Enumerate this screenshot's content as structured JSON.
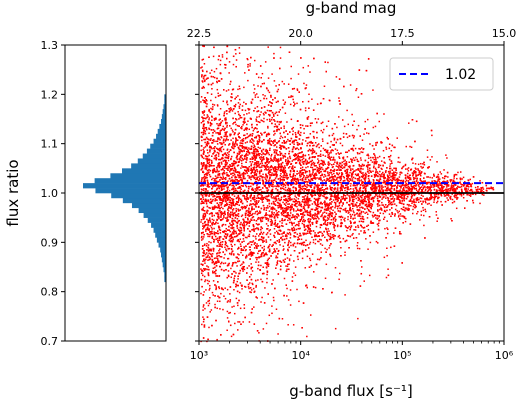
{
  "chart_data": [
    {
      "type": "bar",
      "orientation": "horizontal",
      "panel": "histogram",
      "ylabel": "flux ratio",
      "ylim": [
        0.7,
        1.3
      ],
      "ytick_labels": [
        "0.7",
        "0.8",
        "0.9",
        "1.0",
        "1.1",
        "1.2",
        "1.3"
      ],
      "bar_color": "#1f77b4",
      "bins": [
        {
          "y": 0.825,
          "value": 0.02
        },
        {
          "y": 0.835,
          "value": 0.02
        },
        {
          "y": 0.845,
          "value": 0.03
        },
        {
          "y": 0.855,
          "value": 0.04
        },
        {
          "y": 0.865,
          "value": 0.05
        },
        {
          "y": 0.875,
          "value": 0.06
        },
        {
          "y": 0.885,
          "value": 0.07
        },
        {
          "y": 0.895,
          "value": 0.09
        },
        {
          "y": 0.905,
          "value": 0.11
        },
        {
          "y": 0.915,
          "value": 0.13
        },
        {
          "y": 0.925,
          "value": 0.15
        },
        {
          "y": 0.935,
          "value": 0.18
        },
        {
          "y": 0.945,
          "value": 0.22
        },
        {
          "y": 0.955,
          "value": 0.27
        },
        {
          "y": 0.965,
          "value": 0.33
        },
        {
          "y": 0.975,
          "value": 0.41
        },
        {
          "y": 0.985,
          "value": 0.52
        },
        {
          "y": 0.995,
          "value": 0.66
        },
        {
          "y": 1.005,
          "value": 0.85
        },
        {
          "y": 1.015,
          "value": 1.0
        },
        {
          "y": 1.025,
          "value": 0.86
        },
        {
          "y": 1.035,
          "value": 0.67
        },
        {
          "y": 1.045,
          "value": 0.53
        },
        {
          "y": 1.055,
          "value": 0.42
        },
        {
          "y": 1.065,
          "value": 0.34
        },
        {
          "y": 1.075,
          "value": 0.28
        },
        {
          "y": 1.085,
          "value": 0.23
        },
        {
          "y": 1.095,
          "value": 0.19
        },
        {
          "y": 1.105,
          "value": 0.15
        },
        {
          "y": 1.115,
          "value": 0.12
        },
        {
          "y": 1.125,
          "value": 0.1
        },
        {
          "y": 1.135,
          "value": 0.08
        },
        {
          "y": 1.145,
          "value": 0.06
        },
        {
          "y": 1.155,
          "value": 0.05
        },
        {
          "y": 1.165,
          "value": 0.04
        },
        {
          "y": 1.175,
          "value": 0.03
        },
        {
          "y": 1.185,
          "value": 0.02
        },
        {
          "y": 1.195,
          "value": 0.02
        }
      ]
    },
    {
      "type": "scatter",
      "panel": "main",
      "xlabel": "g-band flux [s⁻¹]",
      "xscale": "log",
      "xlim": [
        1000,
        1000000
      ],
      "xtick_labels": [
        "10³",
        "10⁴",
        "10⁵",
        "10⁶"
      ],
      "top_axis_label": "g-band mag",
      "top_tick_labels": [
        "22.5",
        "20.0",
        "17.5",
        "15.0"
      ],
      "ylim": [
        0.7,
        1.3
      ],
      "point_color": "#ff0000",
      "scatter_model": {
        "center": 1.0,
        "spread_at_low_flux": 0.12,
        "spread_at_high_flux": 0.004,
        "density": "decreasing with flux"
      },
      "reference_line": {
        "y": 1.0,
        "color": "#000000"
      },
      "median_line": {
        "y": 1.02,
        "color": "#0000ff",
        "style": "dashed",
        "label": "1.02"
      },
      "legend": {
        "label": "1.02",
        "position": "top-right"
      }
    }
  ]
}
